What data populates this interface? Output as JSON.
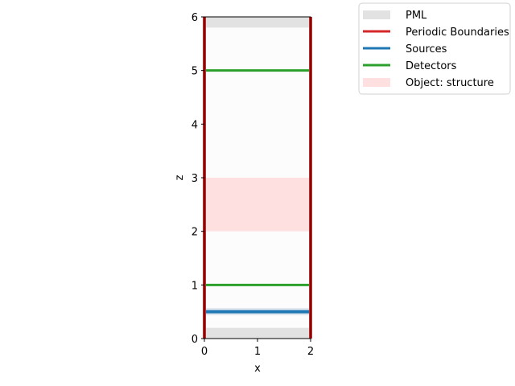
{
  "chart_data": {
    "type": "layout",
    "xlabel": "x",
    "ylabel": "z",
    "xlim": [
      0,
      2
    ],
    "ylim": [
      0,
      6
    ],
    "x_ticks": [
      "0",
      "1",
      "2"
    ],
    "y_ticks": [
      "0",
      "1",
      "2",
      "3",
      "4",
      "5",
      "6"
    ],
    "pml_regions": [
      {
        "z0": 0.0,
        "z1": 0.2
      },
      {
        "z0": 5.8,
        "z1": 6.0
      }
    ],
    "periodic_boundaries_x": [
      0,
      2
    ],
    "sources_z": [
      0.5
    ],
    "detectors_z": [
      1.0,
      5.0
    ],
    "objects": [
      {
        "name": "structure",
        "z0": 2.0,
        "z1": 3.0
      }
    ],
    "legend": {
      "placement": "outside-top-right",
      "entries": [
        {
          "label": "PML",
          "color": "#e2e2e2",
          "style": "band"
        },
        {
          "label": "Periodic Boundaries",
          "color": "#d62728",
          "style": "line"
        },
        {
          "label": "Sources",
          "color": "#1f77b4",
          "style": "line"
        },
        {
          "label": "Detectors",
          "color": "#2ca02c",
          "style": "line"
        },
        {
          "label": "Object: structure",
          "color": "#ffe0e0",
          "style": "band"
        }
      ]
    }
  }
}
